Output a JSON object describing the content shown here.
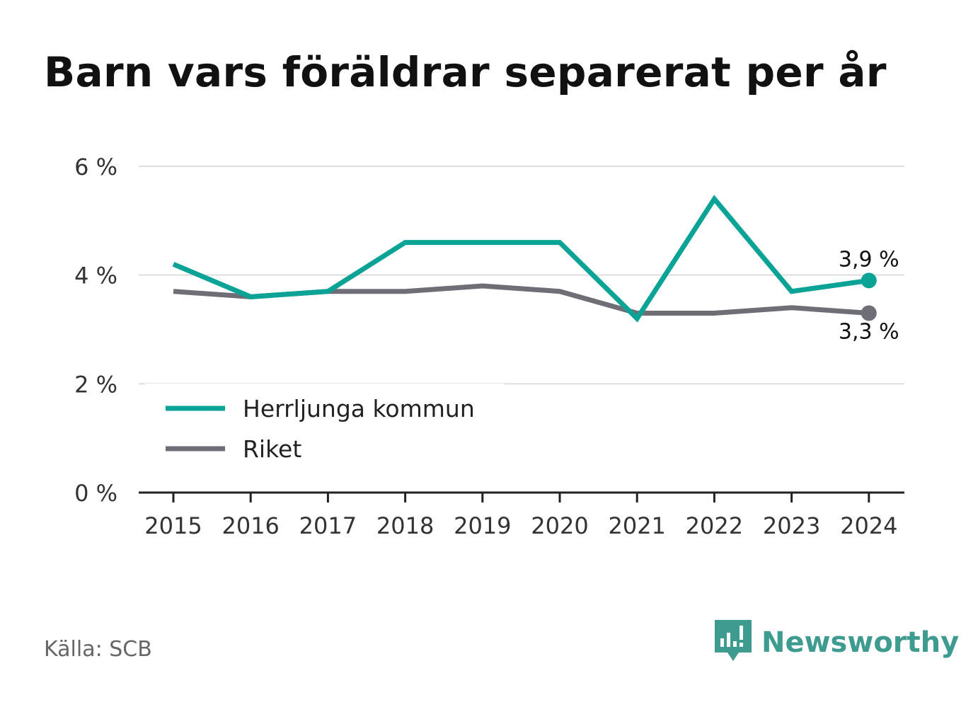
{
  "header": {
    "title": "Barn vars föräldrar separerat per år"
  },
  "footer": {
    "source": "Källa: SCB",
    "brand_name": "Newsworthy",
    "brand_color": "#3d9b8f",
    "brand_icon": "newsworthy-logo-icon"
  },
  "chart_data": {
    "type": "line",
    "title": "Barn vars föräldrar separerat per år",
    "xlabel": "",
    "ylabel": "",
    "x": [
      "2015",
      "2016",
      "2017",
      "2018",
      "2019",
      "2020",
      "2021",
      "2022",
      "2023",
      "2024"
    ],
    "ylim": [
      0,
      6
    ],
    "yticks": [
      {
        "value": 0,
        "label": "0 %"
      },
      {
        "value": 2,
        "label": "2 %"
      },
      {
        "value": 4,
        "label": "4 %"
      },
      {
        "value": 6,
        "label": "6 %"
      }
    ],
    "grid": true,
    "legend_position": "bottom-left",
    "series": [
      {
        "name": "Herrljunga kommun",
        "color": "#0aa396",
        "values": [
          4.2,
          3.6,
          3.7,
          4.6,
          4.6,
          4.6,
          3.2,
          5.4,
          3.7,
          3.9
        ],
        "end_label": "3,9 %"
      },
      {
        "name": "Riket",
        "color": "#6f6e76",
        "values": [
          3.7,
          3.6,
          3.7,
          3.7,
          3.8,
          3.7,
          3.3,
          3.3,
          3.4,
          3.3
        ],
        "end_label": "3,3 %"
      }
    ]
  }
}
